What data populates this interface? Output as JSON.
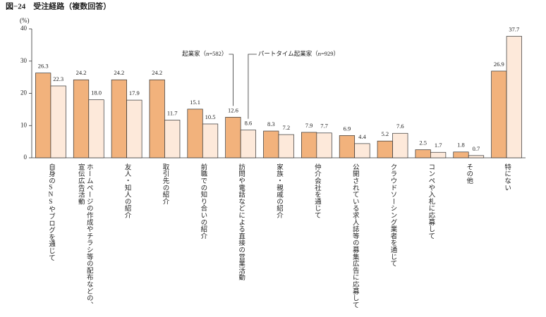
{
  "chart_data": {
    "type": "bar",
    "title": "図−24　受注経路（複数回答）",
    "y_label": "(%)",
    "categories": [
      "自身のSNSやブログを通じて",
      "ホームページの作成やチラシ等の配布などの、宣伝広告活動",
      "友人・知人の紹介",
      "取引先の紹介",
      "前職での知り合いの紹介",
      "訪問や電話などによる直接の営業活動",
      "家族・親戚の紹介",
      "仲介会社を通じて",
      "公開されている求人誌等の募集広告に応募して",
      "クラウドソーシング業者を通じて",
      "コンペや入札に応募して",
      "その他",
      "特にない"
    ],
    "series": [
      {
        "name": "起業家（n=582）",
        "color": "#f2b27c",
        "values": [
          26.3,
          24.2,
          24.2,
          24.2,
          15.1,
          12.6,
          8.3,
          7.9,
          6.9,
          5.2,
          2.5,
          1.8,
          26.9
        ],
        "value_labels": [
          "26.3",
          "24.2",
          "24.2",
          "24.2",
          "15.1",
          "12.6",
          "8.3",
          "7.9",
          "6.9",
          "5.2",
          "2.5",
          "1.8",
          "26.9"
        ]
      },
      {
        "name": "パートタイム起業家（n=929）",
        "color": "#fde9da",
        "values": [
          22.3,
          18.0,
          17.9,
          11.7,
          10.5,
          8.6,
          7.2,
          7.7,
          4.4,
          7.6,
          1.7,
          0.7,
          37.7
        ],
        "value_labels": [
          "22.3",
          "18.0",
          "17.9",
          "11.7",
          "10.5",
          "8.6",
          "7.2",
          "7.7",
          "4.4",
          "7.6",
          "1.7",
          "0.7",
          "37.7"
        ]
      }
    ],
    "ylim": [
      0,
      40
    ],
    "yticks": [
      0,
      10,
      20,
      30,
      40
    ],
    "grid": false
  }
}
